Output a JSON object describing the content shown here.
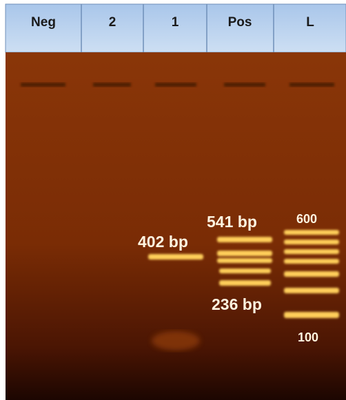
{
  "lanes": [
    "Neg",
    "2",
    "1",
    "Pos",
    "L"
  ],
  "annotations": {
    "lane1_band": "402 bp",
    "pos_top": "541 bp",
    "pos_bottom": "236 bp",
    "ladder_top": "600",
    "ladder_bottom": "100"
  }
}
